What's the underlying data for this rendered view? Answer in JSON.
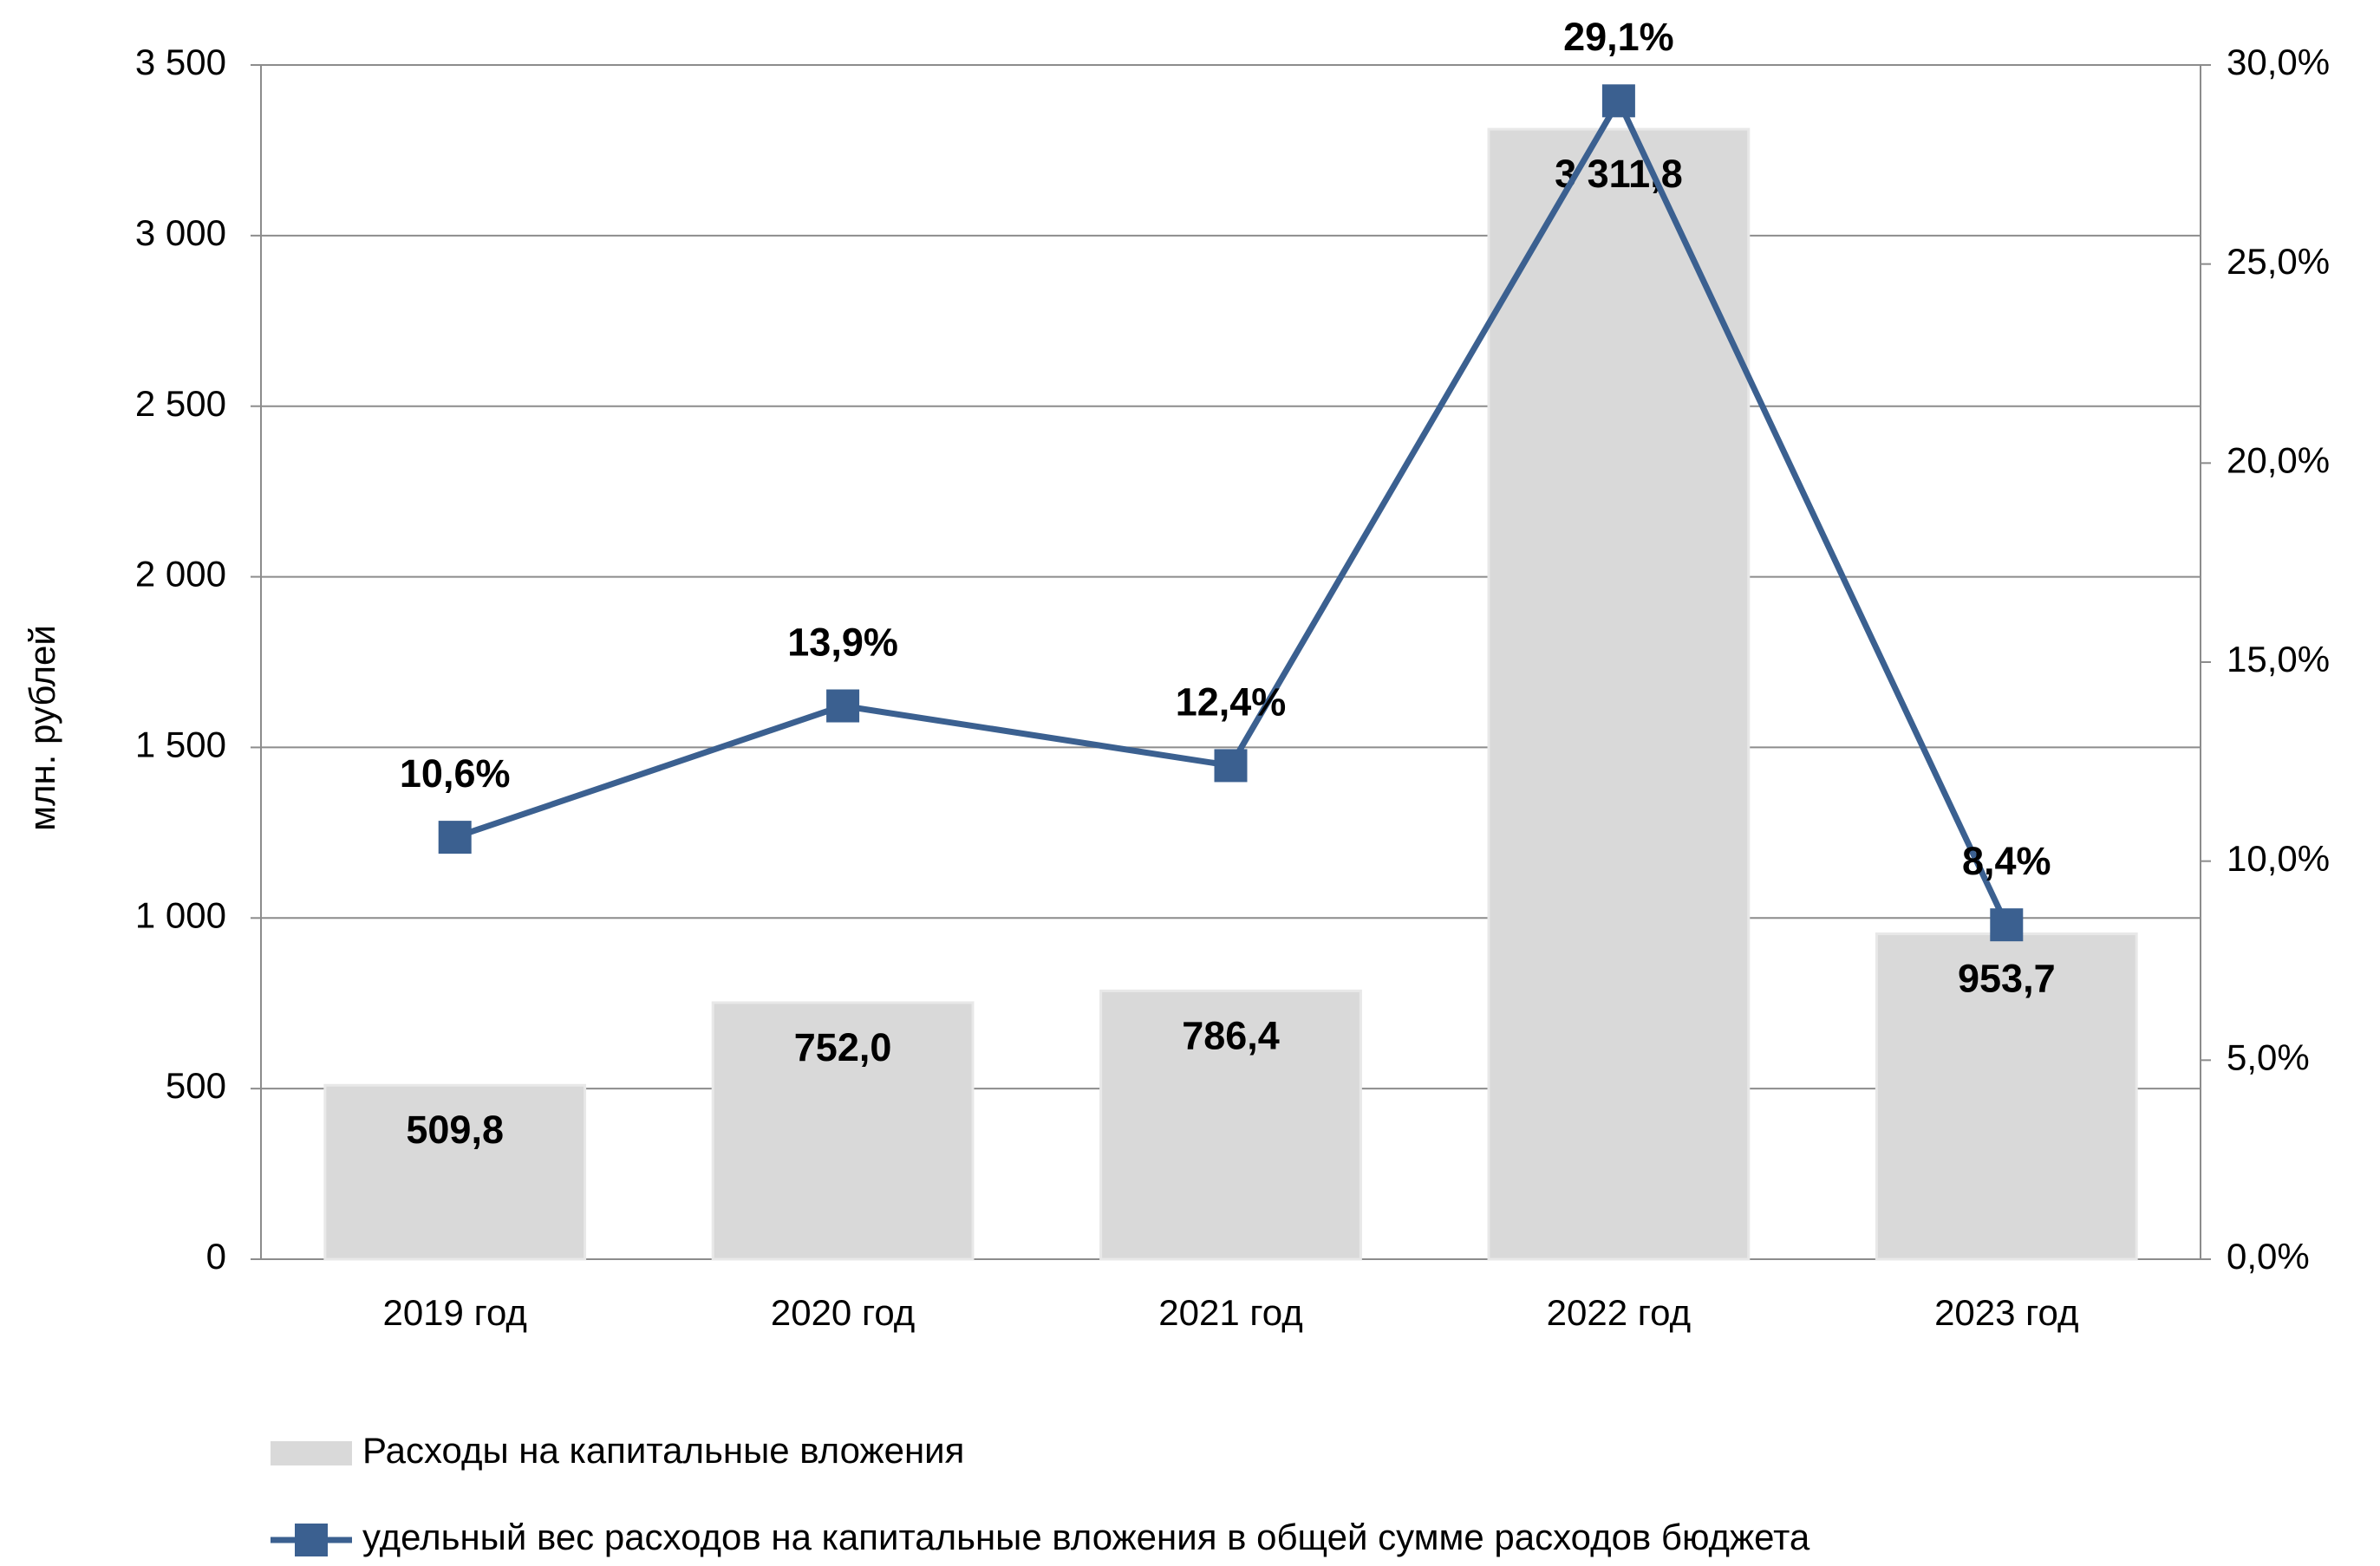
{
  "chart_data": {
    "type": "combo",
    "y_label": "млн. рублей",
    "categories": [
      "2019 год",
      "2020 год",
      "2021 год",
      "2022 год",
      "2023 год"
    ],
    "series": [
      {
        "name": "Расходы на капитальные вложения",
        "type": "bar",
        "axis": "y",
        "color": "#d9d9d9",
        "values": [
          509.8,
          752.0,
          786.4,
          3311.8,
          953.7
        ],
        "value_labels": [
          "509,8",
          "752,0",
          "786,4",
          "3 311,8",
          "953,7"
        ]
      },
      {
        "name": "удельный вес расходов на капитальные вложения в общей сумме расходов бюджета",
        "type": "line",
        "axis": "y2",
        "color": "#3b6090",
        "values": [
          10.6,
          13.9,
          12.4,
          29.1,
          8.4
        ],
        "value_labels": [
          "10,6%",
          "13,9%",
          "12,4%",
          "29,1%",
          "8,4%"
        ]
      }
    ],
    "ylim": [
      0,
      3500
    ],
    "yticks": [
      0,
      500,
      {
        "value": 1000,
        "label": "1 000"
      },
      {
        "value": 1500,
        "label": "1 500"
      },
      {
        "value": 2000,
        "label": "2 000"
      },
      {
        "value": 2500,
        "label": "2 500"
      },
      {
        "value": 3000,
        "label": "3 000"
      },
      {
        "value": 3500,
        "label": "3 500"
      }
    ],
    "y2lim": [
      0,
      30
    ],
    "y2ticks": [
      {
        "value": 0,
        "label": "0,0%"
      },
      {
        "value": 5,
        "label": "5,0%"
      },
      {
        "value": 10,
        "label": "10,0%"
      },
      {
        "value": 15,
        "label": "15,0%"
      },
      {
        "value": 20,
        "label": "20,0%"
      },
      {
        "value": 25,
        "label": "25,0%"
      },
      {
        "value": 30,
        "label": "30,0%"
      }
    ],
    "grid": true
  }
}
